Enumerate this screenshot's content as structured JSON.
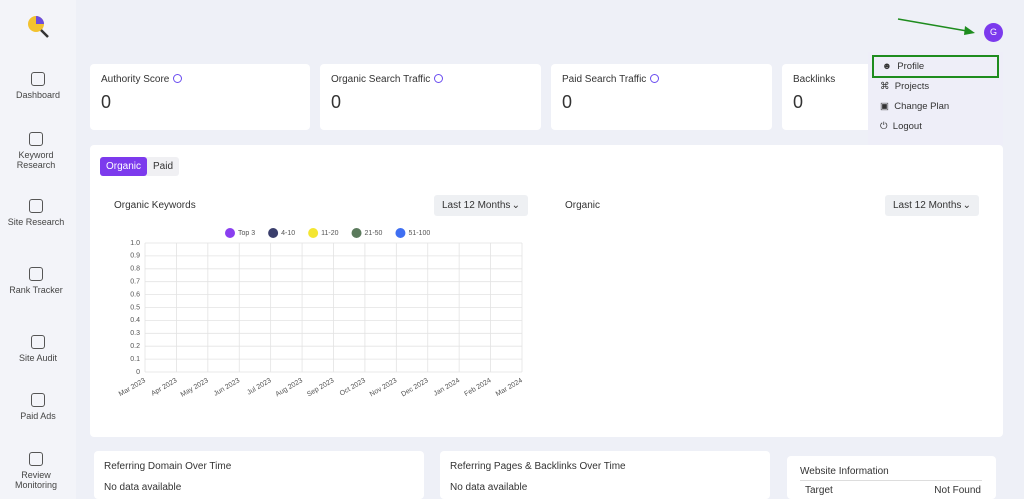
{
  "avatar": "G",
  "nav": [
    "Dashboard",
    "Keyword Research",
    "Site Research",
    "Rank Tracker",
    "Site Audit",
    "Paid Ads",
    "Review Monitoring"
  ],
  "cards": [
    {
      "label": "Authority Score",
      "value": "0"
    },
    {
      "label": "Organic Search Traffic",
      "value": "0"
    },
    {
      "label": "Paid Search Traffic",
      "value": "0"
    },
    {
      "label": "Backlinks",
      "value": "0"
    }
  ],
  "menu": [
    "Profile",
    "Projects",
    "Change Plan",
    "Logout"
  ],
  "tabs": [
    "Organic",
    "Paid"
  ],
  "panels": [
    {
      "title": "Organic Keywords",
      "range": "Last 12 Months"
    },
    {
      "title": "Organic",
      "range": "Last 12 Months"
    }
  ],
  "chart_data": {
    "type": "line",
    "categories": [
      "Mar 2023",
      "Apr 2023",
      "May 2023",
      "Jun 2023",
      "Jul 2023",
      "Aug 2023",
      "Sep 2023",
      "Oct 2023",
      "Nov 2023",
      "Dec 2023",
      "Jan 2024",
      "Feb 2024",
      "Mar 2024"
    ],
    "series": [
      {
        "name": "Top 3",
        "color": "#8a3ff0",
        "values": [
          null,
          null,
          null,
          null,
          null,
          null,
          null,
          null,
          null,
          null,
          null,
          null,
          null
        ]
      },
      {
        "name": "4-10",
        "color": "#3a3e6c",
        "values": [
          null,
          null,
          null,
          null,
          null,
          null,
          null,
          null,
          null,
          null,
          null,
          null,
          null
        ]
      },
      {
        "name": "11-20",
        "color": "#f4e631",
        "values": [
          null,
          null,
          null,
          null,
          null,
          null,
          null,
          null,
          null,
          null,
          null,
          null,
          null
        ]
      },
      {
        "name": "21-50",
        "color": "#5b7a5c",
        "values": [
          null,
          null,
          null,
          null,
          null,
          null,
          null,
          null,
          null,
          null,
          null,
          null,
          null
        ]
      },
      {
        "name": "51-100",
        "color": "#3f6ff2",
        "values": [
          null,
          null,
          null,
          null,
          null,
          null,
          null,
          null,
          null,
          null,
          null,
          null,
          null
        ]
      }
    ],
    "ylim": [
      0,
      1
    ],
    "yticks": [
      0,
      0.1,
      0.2,
      0.3,
      0.4,
      0.5,
      0.6,
      0.7,
      0.8,
      0.9,
      {
        "value": 1,
        "label": "1.0"
      }
    ],
    "grid": true
  },
  "bottom": [
    {
      "title": "Referring Domain Over Time",
      "text": "No data available"
    },
    {
      "title": "Referring Pages & Backlinks Over Time",
      "text": "No data available"
    }
  ],
  "info": {
    "title": "Website Information",
    "rows": [
      [
        "Target",
        "Not Found"
      ]
    ]
  }
}
